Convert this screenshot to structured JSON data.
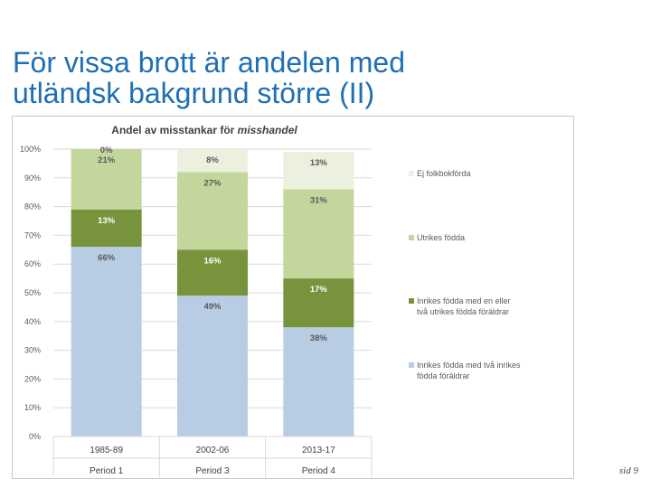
{
  "slide": {
    "title_line1": "För vissa brott är andelen med",
    "title_line2": "utländsk bakgrund större (II)",
    "page_number": "sid 9"
  },
  "chart_data": {
    "type": "bar",
    "stacked": true,
    "title_prefix": "Andel av misstankar för ",
    "title_emphasis": "misshandel",
    "categories": [
      "1985-89",
      "2002-06",
      "2013-17"
    ],
    "periods": [
      "Period 1",
      "Period 3",
      "Period 4"
    ],
    "y_ticks": [
      "0%",
      "10%",
      "20%",
      "30%",
      "40%",
      "50%",
      "60%",
      "70%",
      "80%",
      "90%",
      "100%"
    ],
    "ylim": [
      0,
      100
    ],
    "grid": true,
    "legend_position": "right",
    "series": [
      {
        "name": "Inrikes födda med två inrikes födda föräldrar",
        "legend_lines": [
          "Inrikes födda med två inrikes",
          "födda föräldrar"
        ],
        "values": [
          66,
          49,
          38
        ],
        "labels": [
          "66%",
          "49%",
          "38%"
        ],
        "color": "#b8cce4"
      },
      {
        "name": "Inrikes födda med en eller två utrikes födda föräldrar",
        "legend_lines": [
          "Inrikes födda med en eller",
          "två utrikes födda föräldrar"
        ],
        "values": [
          13,
          16,
          17
        ],
        "labels": [
          "13%",
          "16%",
          "17%"
        ],
        "color": "#77933c"
      },
      {
        "name": "Utrikes födda",
        "legend_lines": [
          "Utrikes födda"
        ],
        "values": [
          21,
          27,
          31
        ],
        "labels": [
          "21%",
          "27%",
          "31%"
        ],
        "color": "#c3d69b"
      },
      {
        "name": "Ej folkbokförda",
        "legend_lines": [
          "Ej folkbokförda"
        ],
        "values": [
          0,
          8,
          13
        ],
        "labels": [
          "0%",
          "8%",
          "13%"
        ],
        "color": "#ebf1de"
      }
    ]
  }
}
